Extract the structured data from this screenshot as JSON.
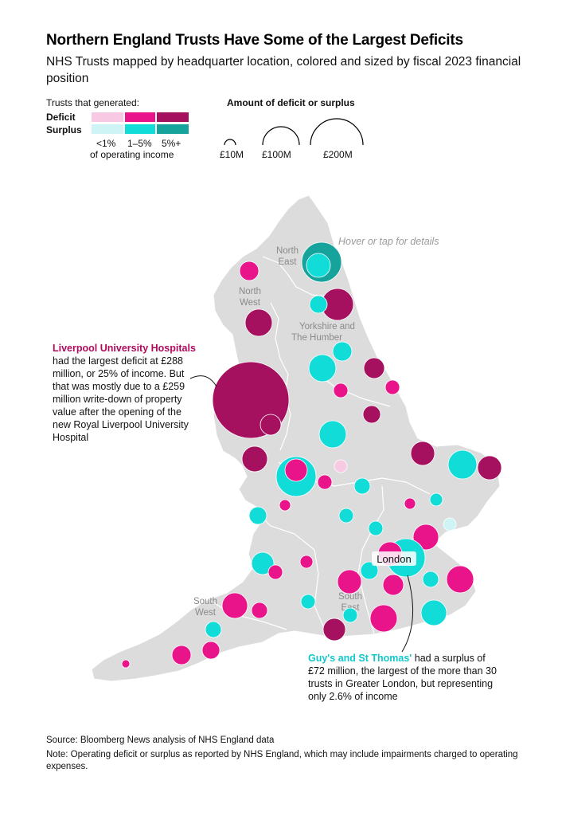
{
  "title": "Northern England Trusts Have Some of the Largest Deficits",
  "subtitle": "NHS Trusts mapped by headquarter location, colored and sized by fiscal 2023 financial position",
  "legend": {
    "intro": "Trusts that generated:",
    "deficit_label": "Deficit",
    "surplus_label": "Surplus",
    "bands": [
      "<1%",
      "1–5%",
      "5%+"
    ],
    "band_caption": "of operating income",
    "deficit_colors": [
      "#f7c9e3",
      "#e9138a",
      "#a5105f"
    ],
    "surplus_colors": [
      "#cef4f6",
      "#12dcd8",
      "#16a39c"
    ],
    "size_title": "Amount of deficit or surplus",
    "sizes": [
      "£10M",
      "£100M",
      "£200M"
    ]
  },
  "hover_note": "Hover or tap for details",
  "regions": {
    "north_east": [
      "North",
      "East"
    ],
    "north_west": [
      "North",
      "West"
    ],
    "yorkshire": [
      "Yorkshire and",
      "The Humber"
    ],
    "south_east": [
      "South",
      "East"
    ],
    "south_west": [
      "South",
      "West"
    ],
    "london": "London"
  },
  "callouts": {
    "liverpool_highlight": "Liverpool University Hospitals",
    "liverpool_text": "had the largest deficit at £288 million, or 25% of income. But that was mostly due to a £259 million write-down of property value after the opening of the new Royal Liverpool University Hospital",
    "guys_highlight": "Guy's and St Thomas'",
    "guys_text": "had a surplus of £72 million, the largest of the more than 30 trusts in Greater London, but representing only 2.6% of income"
  },
  "source": "Source: Bloomberg News analysis of NHS England data",
  "note": "Note: Operating deficit or surplus as reported by NHS England, which may include impairments charged to operating expenses."
}
